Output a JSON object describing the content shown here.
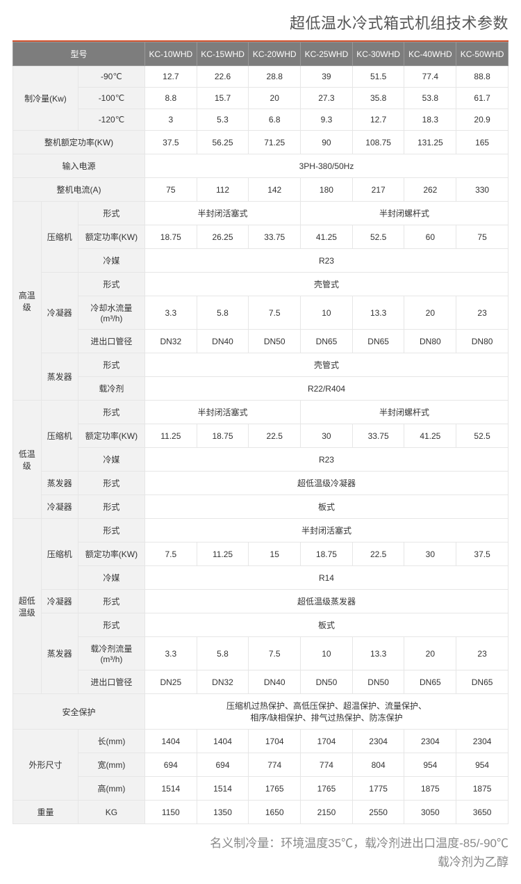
{
  "title": "超低温水冷式箱式机组技术参数",
  "header": {
    "model_label": "型号",
    "models": [
      "KC-10WHD",
      "KC-15WHD",
      "KC-20WHD",
      "KC-25WHD",
      "KC-30WHD",
      "KC-40WHD",
      "KC-50WHD"
    ]
  },
  "cooling": {
    "group_label": "制冷量(Kw)",
    "rows": [
      {
        "temp": "-90℃",
        "vals": [
          "12.7",
          "22.6",
          "28.8",
          "39",
          "51.5",
          "77.4",
          "88.8"
        ]
      },
      {
        "temp": "-100℃",
        "vals": [
          "8.8",
          "15.7",
          "20",
          "27.3",
          "35.8",
          "53.8",
          "61.7"
        ]
      },
      {
        "temp": "-120℃",
        "vals": [
          "3",
          "5.3",
          "6.8",
          "9.3",
          "12.7",
          "18.3",
          "20.9"
        ]
      }
    ]
  },
  "rated_power": {
    "label": "整机额定功率(KW)",
    "vals": [
      "37.5",
      "56.25",
      "71.25",
      "90",
      "108.75",
      "131.25",
      "165"
    ]
  },
  "input_power": {
    "label": "输入电源",
    "value": "3PH-380/50Hz"
  },
  "current": {
    "label": "整机电流(A)",
    "vals": [
      "75",
      "112",
      "142",
      "180",
      "217",
      "262",
      "330"
    ]
  },
  "high": {
    "group_label": "高温级",
    "compressor_label": "压缩机",
    "comp_form_label": "形式",
    "comp_form_span3": "半封闭活塞式",
    "comp_form_span4": "半封闭螺杆式",
    "comp_power_label": "额定功率(KW)",
    "comp_power_vals": [
      "18.75",
      "26.25",
      "33.75",
      "41.25",
      "52.5",
      "60",
      "75"
    ],
    "refrigerant_label": "冷媒",
    "refrigerant_value": "R23",
    "condenser_label": "冷凝器",
    "cond_form_label": "形式",
    "cond_form_value": "壳管式",
    "cool_flow_label": "冷却水流量(m³/h)",
    "cool_flow_vals": [
      "3.3",
      "5.8",
      "7.5",
      "10",
      "13.3",
      "20",
      "23"
    ],
    "port_label": "进出口管径",
    "port_vals": [
      "DN32",
      "DN40",
      "DN50",
      "DN65",
      "DN65",
      "DN80",
      "DN80"
    ],
    "evap_label": "蒸发器",
    "evap_form_label": "形式",
    "evap_form_value": "壳管式",
    "carrier_label": "载冷剂",
    "carrier_value": "R22/R404"
  },
  "low": {
    "group_label": "低温级",
    "compressor_label": "压缩机",
    "comp_form_label": "形式",
    "comp_form_span3": "半封闭活塞式",
    "comp_form_span4": "半封闭螺杆式",
    "comp_power_label": "额定功率(KW)",
    "comp_power_vals": [
      "11.25",
      "18.75",
      "22.5",
      "30",
      "33.75",
      "41.25",
      "52.5"
    ],
    "refrigerant_label": "冷媒",
    "refrigerant_value": "R23",
    "evap_label": "蒸发器",
    "evap_form_label": "形式",
    "evap_form_value": "超低温级冷凝器",
    "cond_label": "冷凝器",
    "cond_form_label": "形式",
    "cond_form_value": "板式"
  },
  "ultra": {
    "group_label": "超低温级",
    "compressor_label": "压缩机",
    "comp_form_label": "形式",
    "comp_form_value": "半封闭活塞式",
    "comp_power_label": "额定功率(KW)",
    "comp_power_vals": [
      "7.5",
      "11.25",
      "15",
      "18.75",
      "22.5",
      "30",
      "37.5"
    ],
    "refrigerant_label": "冷媒",
    "refrigerant_value": "R14",
    "cond_label": "冷凝器",
    "cond_form_label": "形式",
    "cond_form_value": "超低温级蒸发器",
    "evap_label": "蒸发器",
    "evap_form_label": "形式",
    "evap_form_value": "板式",
    "carrier_flow_label": "载冷剂流量(m³/h)",
    "carrier_flow_vals": [
      "3.3",
      "5.8",
      "7.5",
      "10",
      "13.3",
      "20",
      "23"
    ],
    "port_label": "进出口管径",
    "port_vals": [
      "DN25",
      "DN32",
      "DN40",
      "DN50",
      "DN50",
      "DN65",
      "DN65"
    ]
  },
  "safety": {
    "label": "安全保护",
    "line1": "压缩机过热保护、高低压保护、超温保护、流量保护、",
    "line2": "相序/缺相保护、排气过热保护、防冻保护"
  },
  "dims": {
    "group_label": "外形尺寸",
    "len_label": "长(mm)",
    "len_vals": [
      "1404",
      "1404",
      "1704",
      "1704",
      "2304",
      "2304",
      "2304"
    ],
    "wid_label": "宽(mm)",
    "wid_vals": [
      "694",
      "694",
      "774",
      "774",
      "804",
      "954",
      "954"
    ],
    "hgt_label": "高(mm)",
    "hgt_vals": [
      "1514",
      "1514",
      "1765",
      "1765",
      "1775",
      "1875",
      "1875"
    ]
  },
  "weight": {
    "label": "重量",
    "unit": "KG",
    "vals": [
      "1150",
      "1350",
      "1650",
      "2150",
      "2550",
      "3050",
      "3650"
    ]
  },
  "notes": {
    "line1": "名义制冷量：环境温度35℃，载冷剂进出口温度-85/-90℃",
    "line2": "载冷剂为乙醇"
  },
  "colors": {
    "rule": "#d2502a",
    "header_bg": "#7d7d7d",
    "header_fg": "#ffffff",
    "group_bg": "#f2f2f2",
    "border": "#e6e6e6",
    "title": "#555555",
    "notes": "#888888"
  }
}
